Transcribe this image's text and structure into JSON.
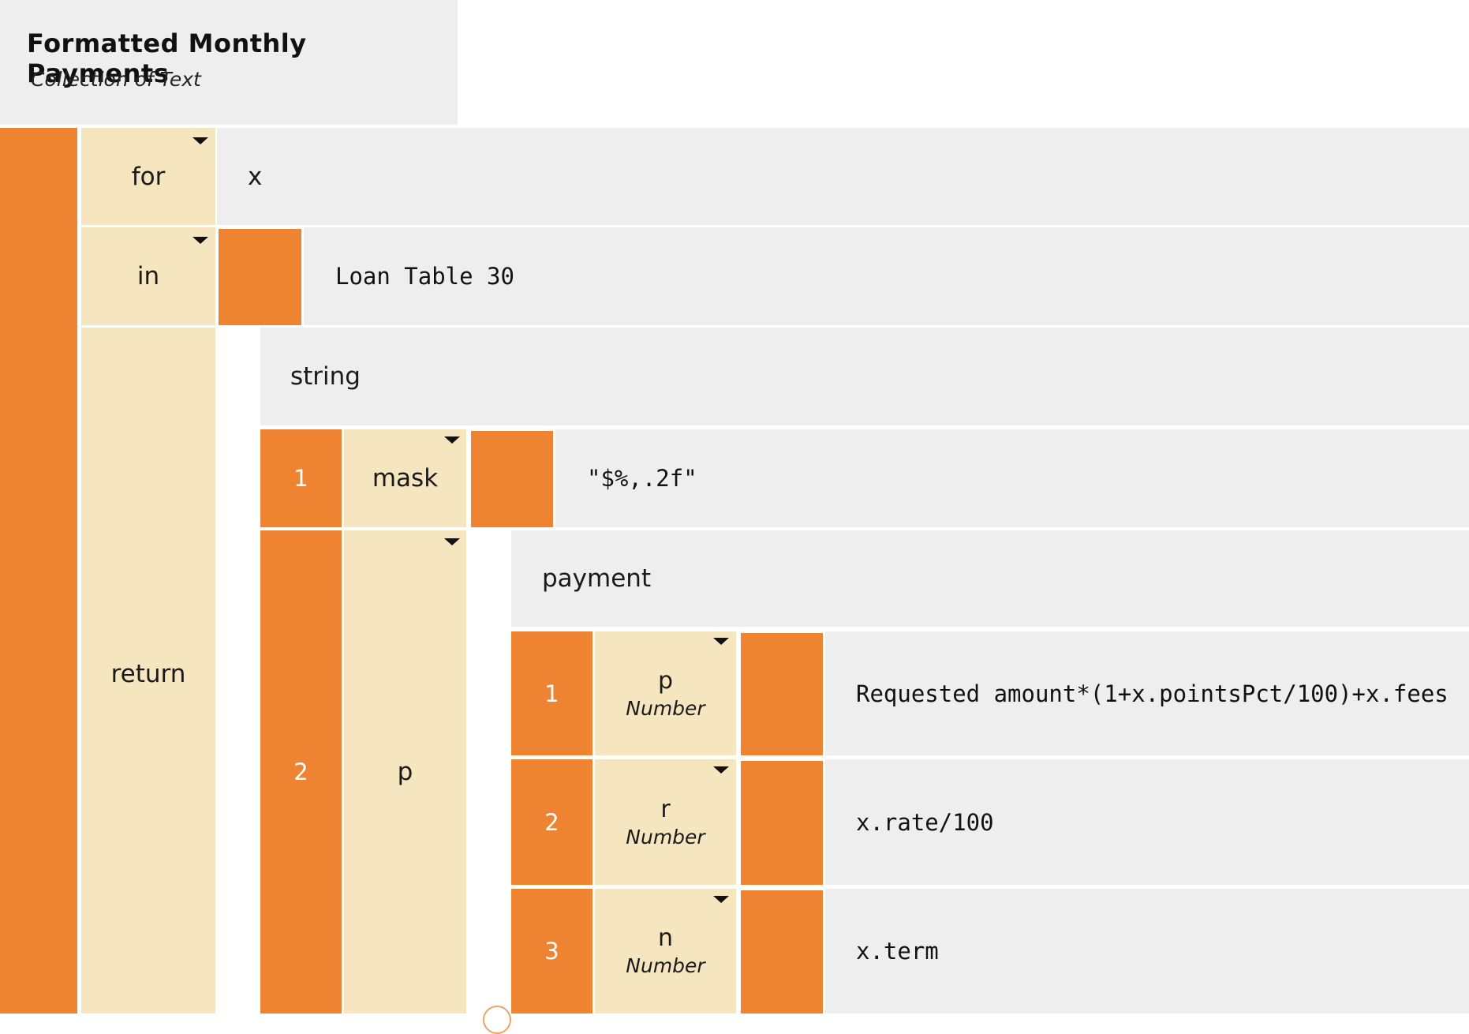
{
  "header": {
    "title": "Formatted Monthly Payments",
    "subtitle": "Collection of Text"
  },
  "for_block": {
    "for_label": "for",
    "for_value": "x",
    "in_label": "in",
    "in_value": "Loan Table 30",
    "return_label": "return"
  },
  "string_block": {
    "function_name": "string",
    "args": [
      {
        "index": "1",
        "name": "mask",
        "value": "\"$%,.2f\""
      },
      {
        "index": "2",
        "name": "p"
      }
    ]
  },
  "payment_block": {
    "function_name": "payment",
    "args": [
      {
        "index": "1",
        "name": "p",
        "type": "Number",
        "value": "Requested amount*(1+x.pointsPct/100)+x.fees"
      },
      {
        "index": "2",
        "name": "r",
        "type": "Number",
        "value": "x.rate/100"
      },
      {
        "index": "3",
        "name": "n",
        "type": "Number",
        "value": "x.term"
      }
    ]
  },
  "colors": {
    "orange": "#ee8431",
    "cream": "#f6e6bf",
    "gray": "#eeeeee"
  }
}
